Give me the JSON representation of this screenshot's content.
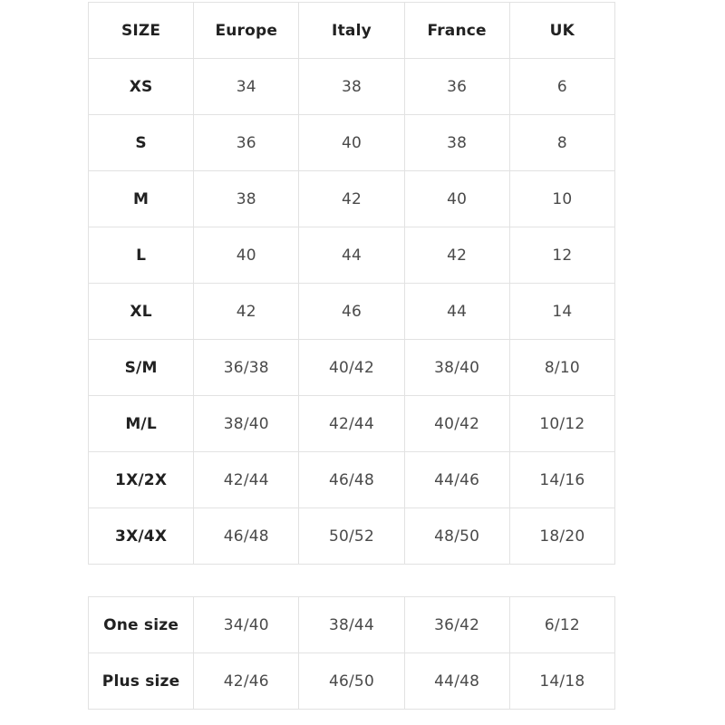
{
  "chart_data": {
    "type": "table",
    "columns": [
      "SIZE",
      "Europe",
      "Italy",
      "France",
      "UK"
    ],
    "rows": [
      [
        "XS",
        "34",
        "38",
        "36",
        "6"
      ],
      [
        "S",
        "36",
        "40",
        "38",
        "8"
      ],
      [
        "M",
        "38",
        "42",
        "40",
        "10"
      ],
      [
        "L",
        "40",
        "44",
        "42",
        "12"
      ],
      [
        "XL",
        "42",
        "46",
        "44",
        "14"
      ],
      [
        "S/M",
        "36/38",
        "40/42",
        "38/40",
        "8/10"
      ],
      [
        "M/L",
        "38/40",
        "42/44",
        "40/42",
        "10/12"
      ],
      [
        "1X/2X",
        "42/44",
        "46/48",
        "44/46",
        "14/16"
      ],
      [
        "3X/4X",
        "46/48",
        "50/52",
        "48/50",
        "18/20"
      ]
    ],
    "extra_rows": [
      [
        "One size",
        "34/40",
        "38/44",
        "36/42",
        "6/12"
      ],
      [
        "Plus size",
        "42/46",
        "46/50",
        "44/48",
        "14/18"
      ]
    ],
    "layout": {
      "grid": true,
      "legend": "none"
    }
  },
  "colors": {
    "background": "#ffffff",
    "border": "#e2e2e2",
    "header_text": "#212121",
    "value_text": "#4a4a4a"
  }
}
